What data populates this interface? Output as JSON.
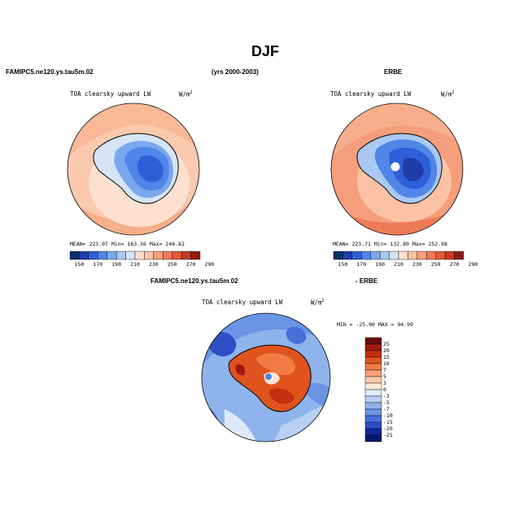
{
  "figure": {
    "title": "DJF",
    "left_header": "FAMIPC5.ne120.ys.tau5m.02",
    "center_header": "(yrs 2000-2003)",
    "right_header": "ERBE"
  },
  "panels": [
    {
      "variable_label": "TOA clearsky upward LW",
      "units": "W/m",
      "units_exp": "2",
      "stats": "MEAN= 223.07   Min= 163.56   Max= 248.82",
      "colorbar_ticks": [
        "150",
        "170",
        "190",
        "210",
        "230",
        "250",
        "270",
        "290"
      ]
    },
    {
      "variable_label": "TOA clearsky upward LW",
      "units": "W/m",
      "units_exp": "2",
      "stats": "MEAN= 223.71   Min= 132.80   Max= 252.98",
      "colorbar_ticks": [
        "150",
        "170",
        "190",
        "210",
        "230",
        "250",
        "270",
        "290"
      ]
    }
  ],
  "diff_panel": {
    "header_left": "FAMIPC5.ne120.ys.tau5m.02",
    "header_right": "- ERBE",
    "variable_label": "TOA clearsky upward LW",
    "units": "W/m",
    "units_exp": "2",
    "minmax": "MIN = -25.00  MAX =  94.99",
    "colorbar_ticks": [
      "25",
      "20",
      "15",
      "10",
      "7",
      "5",
      "3",
      "0",
      "-3",
      "-5",
      "-7",
      "-10",
      "-15",
      "-20",
      "-25"
    ]
  },
  "colors": {
    "abs_scale": [
      "#08306b",
      "#1f3ca8",
      "#2f5fd8",
      "#4f86e8",
      "#7ba7ee",
      "#a9c8f2",
      "#d5e5f6",
      "#fde0cf",
      "#fbc2a6",
      "#f59e7c",
      "#ee7b58",
      "#e05a39",
      "#c43a24",
      "#8f1c13"
    ],
    "diff_scale": [
      "#6b0d08",
      "#9c1a0e",
      "#c3300f",
      "#e0531f",
      "#f07c44",
      "#f6a275",
      "#fbcaa9",
      "#fde6d6",
      "#dfeaf8",
      "#b8d0f2",
      "#8fb4ec",
      "#6a95e4",
      "#466fd9",
      "#2c4fc6",
      "#12259b",
      "#061a6b"
    ]
  }
}
